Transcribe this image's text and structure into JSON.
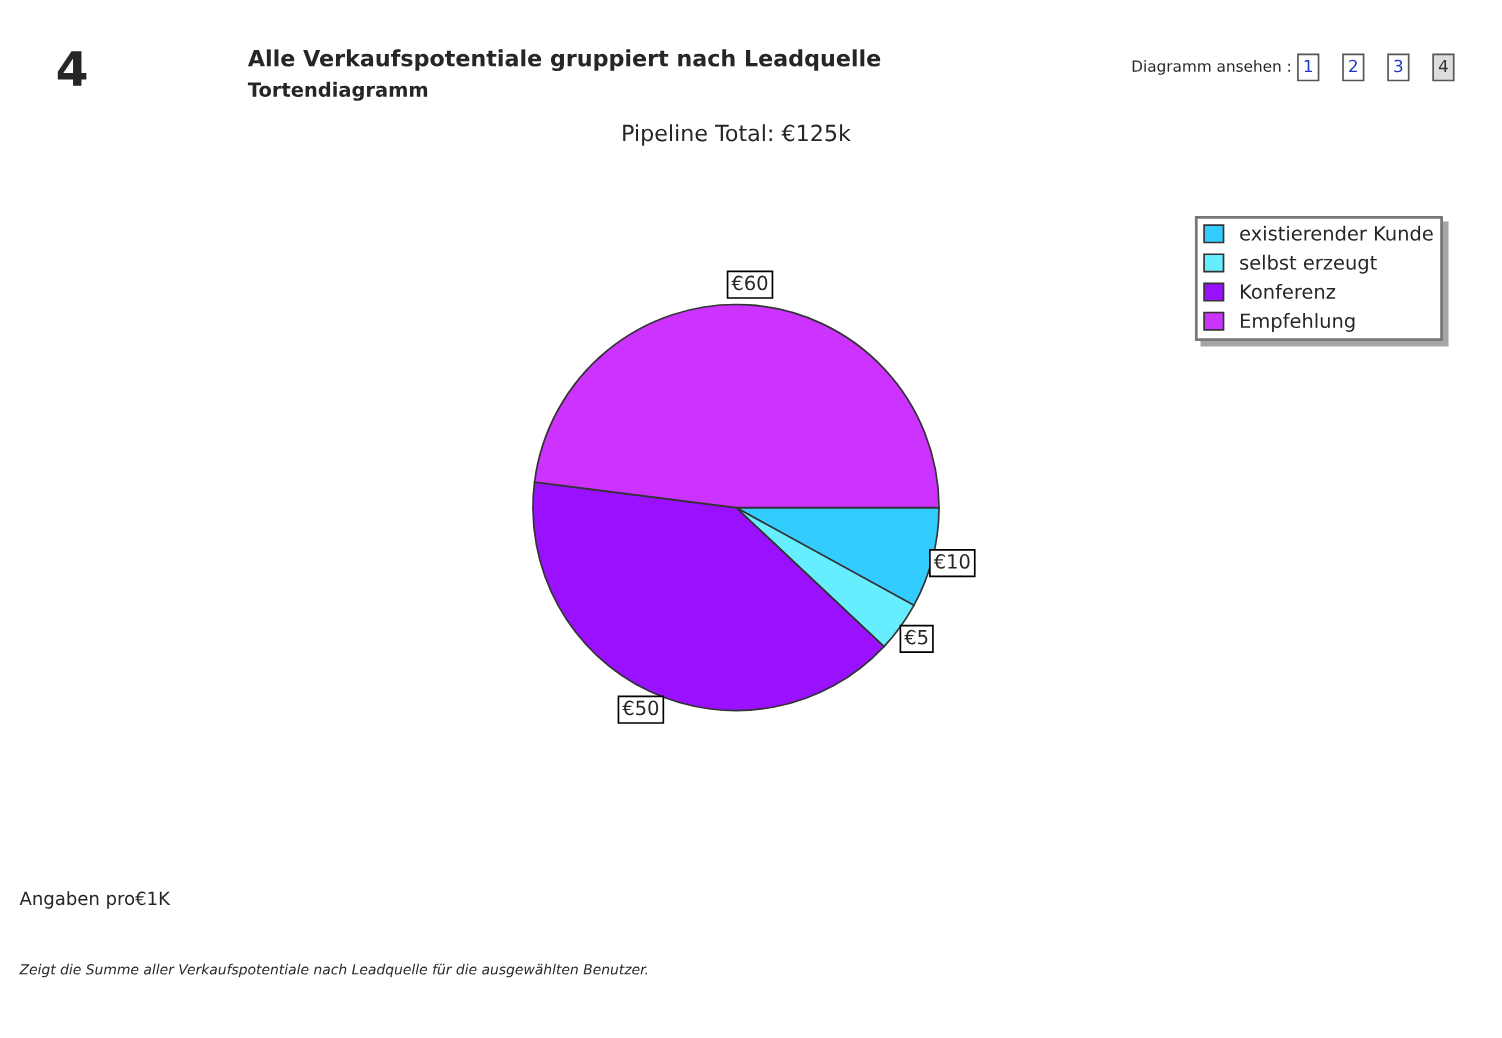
{
  "chart_data": {
    "type": "pie",
    "title": "Alle Verkaufspotentiale gruppiert nach Leadquelle",
    "subtitle": "Tortendiagramm",
    "categories": [
      "existierender Kunde",
      "selbst erzeugt",
      "Konferenz",
      "Empfehlung"
    ],
    "values": [
      10,
      5,
      50,
      60
    ],
    "value_labels": [
      "€10",
      "€5",
      "€50",
      "€60"
    ],
    "colors": [
      "#33ccff",
      "#66eeff",
      "#9911ff",
      "#cc33ff"
    ],
    "legend": "top right",
    "annotations": [
      "4",
      "Diagramm ansehen :",
      "1",
      "2",
      "3",
      "4",
      "Pipeline Total: €125k",
      "Angaben pro€1K",
      "Zeigt die Summe aller Verkaufspotentiale nach Leadquelle für die ausgewählten Benutzer."
    ]
  }
}
